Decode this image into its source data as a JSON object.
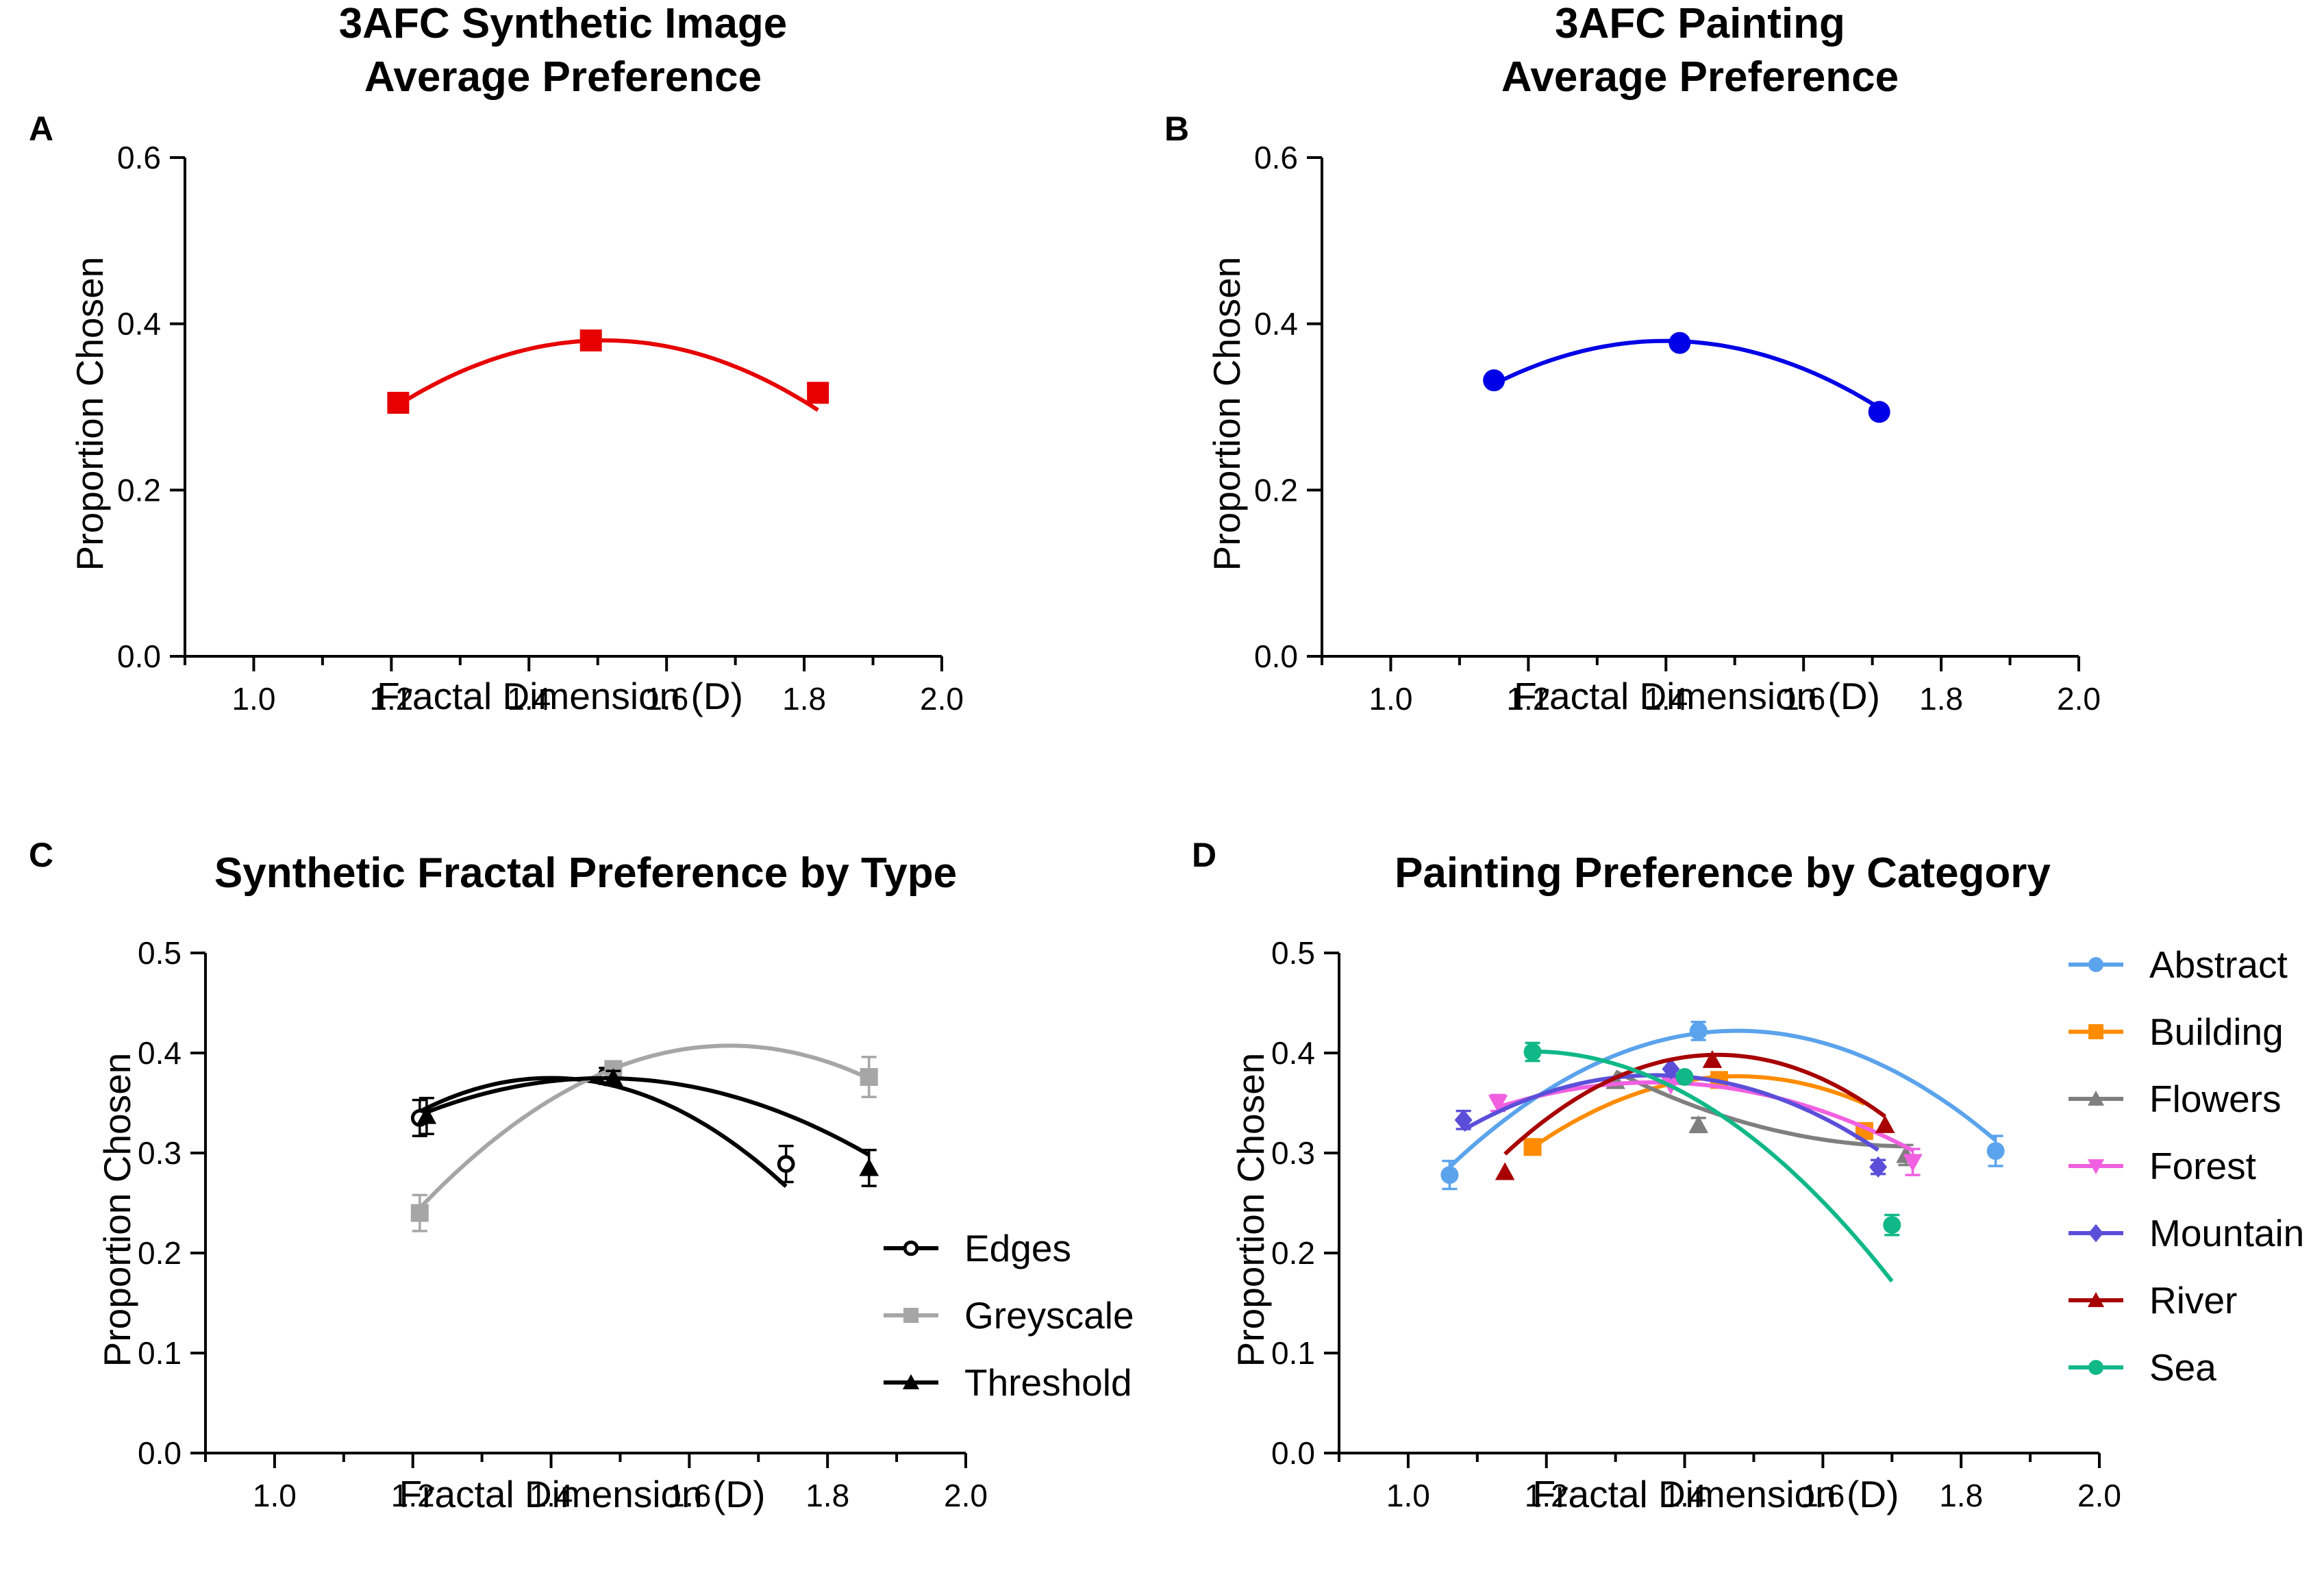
{
  "chart_data": [
    {
      "type": "line",
      "panel_label": "A",
      "title_lines": [
        "3AFC Synthetic Image",
        "Average Preference"
      ],
      "xlabel": "Fractal Dimension (D)",
      "ylabel": "Proportion Chosen",
      "xlim": [
        0.9,
        2.0
      ],
      "ylim": [
        0.0,
        0.6
      ],
      "xticks": [
        "1.0",
        "1.2",
        "1.4",
        "1.6",
        "1.8",
        "2.0"
      ],
      "yticks": [
        "0.0",
        "0.2",
        "0.4",
        "0.6"
      ],
      "legend_position": "none",
      "series": [
        {
          "name": "Synthetic",
          "color": "#e60000",
          "marker": "square",
          "x": [
            1.21,
            1.49,
            1.82
          ],
          "y": [
            0.305,
            0.38,
            0.317
          ],
          "fit": [
            -0.868,
            2.62,
            -1.597
          ],
          "fit_range": [
            1.21,
            1.82
          ]
        }
      ]
    },
    {
      "type": "line",
      "panel_label": "B",
      "title_lines": [
        "3AFC Painting",
        "Average Preference"
      ],
      "xlabel": "Fractal Dimension (D)",
      "ylabel": "Proportion Chosen",
      "xlim": [
        0.9,
        2.0
      ],
      "ylim": [
        0.0,
        0.6
      ],
      "xticks": [
        "1.0",
        "1.2",
        "1.4",
        "1.6",
        "1.8",
        "2.0"
      ],
      "yticks": [
        "0.0",
        "0.2",
        "0.4",
        "0.6"
      ],
      "legend_position": "none",
      "series": [
        {
          "name": "Painting",
          "color": "#0000e6",
          "marker": "circle",
          "x": [
            1.15,
            1.42,
            1.71
          ],
          "y": [
            0.332,
            0.377,
            0.294
          ],
          "fit": [
            -0.836,
            2.34,
            -1.258
          ],
          "fit_range": [
            1.15,
            1.71
          ]
        }
      ]
    },
    {
      "type": "line",
      "panel_label": "C",
      "title_lines": [
        "Synthetic Fractal Preference by Type"
      ],
      "xlabel": "Fractal Dimension (D)",
      "ylabel": "Proportion Chosen",
      "xlim": [
        0.9,
        2.0
      ],
      "ylim": [
        0.0,
        0.5
      ],
      "xticks": [
        "1.0",
        "1.2",
        "1.4",
        "1.6",
        "1.8",
        "2.0"
      ],
      "yticks": [
        "0.0",
        "0.1",
        "0.2",
        "0.3",
        "0.4",
        "0.5"
      ],
      "legend_position": "right",
      "series": [
        {
          "name": "Edges",
          "color": "#000000",
          "marker": "open-circle",
          "x": [
            1.21,
            1.48,
            1.74
          ],
          "y": [
            0.335,
            0.377,
            0.289
          ],
          "err": [
            0.018,
            0.008,
            0.018
          ],
          "fit": [
            -0.934,
            2.614,
            -1.454
          ],
          "fit_range": [
            1.21,
            1.74
          ]
        },
        {
          "name": "Greyscale",
          "color": "#a6a6a6",
          "marker": "square",
          "x": [
            1.21,
            1.49,
            1.86
          ],
          "y": [
            0.24,
            0.384,
            0.376
          ],
          "err": [
            0.018,
            0.007,
            0.02
          ],
          "fit": [
            -0.808,
            2.68,
            -1.815
          ],
          "fit_range": [
            1.21,
            1.86
          ]
        },
        {
          "name": "Threshold",
          "color": "#000000",
          "marker": "triangle",
          "x": [
            1.22,
            1.49,
            1.86
          ],
          "y": [
            0.337,
            0.375,
            0.285
          ],
          "err": [
            0.018,
            0.007,
            0.018
          ],
          "fit": [
            -0.52,
            1.535,
            -0.758
          ],
          "fit_range": [
            1.22,
            1.86
          ]
        }
      ]
    },
    {
      "type": "line",
      "panel_label": "D",
      "title_lines": [
        "Painting Preference by Category"
      ],
      "xlabel": "Fractal Dimension (D)",
      "ylabel": "Proportion Chosen",
      "xlim": [
        0.9,
        2.0
      ],
      "ylim": [
        0.0,
        0.5
      ],
      "xticks": [
        "1.0",
        "1.2",
        "1.4",
        "1.6",
        "1.8",
        "2.0"
      ],
      "yticks": [
        "0.0",
        "0.1",
        "0.2",
        "0.3",
        "0.4",
        "0.5"
      ],
      "legend_position": "right",
      "series": [
        {
          "name": "Abstract",
          "color": "#5ba3ec",
          "marker": "circle",
          "x": [
            1.06,
            1.42,
            1.85
          ],
          "y": [
            0.278,
            0.422,
            0.302
          ],
          "err": [
            0.014,
            0.009,
            0.015
          ],
          "fit": [
            -0.785,
            2.318,
            -1.289
          ],
          "fit_range": [
            1.06,
            1.85
          ]
        },
        {
          "name": "Building",
          "color": "#ff8c00",
          "marker": "square",
          "x": [
            1.18,
            1.45,
            1.66
          ],
          "y": [
            0.306,
            0.373,
            0.322
          ],
          "err": [
            0.0,
            0.0,
            0.0
          ],
          "fit": [
            -0.809,
            2.389,
            -1.387
          ],
          "fit_range": [
            1.18,
            1.66
          ]
        },
        {
          "name": "Flowers",
          "color": "#7f7f7f",
          "marker": "triangle",
          "x": [
            1.3,
            1.42,
            1.72
          ],
          "y": [
            0.372,
            0.328,
            0.298
          ],
          "err": [
            0.0,
            0.007,
            0.01
          ],
          "fit": [
            0.404,
            -1.398,
            1.516
          ],
          "fit_range": [
            1.3,
            1.72
          ]
        },
        {
          "name": "Forest",
          "color": "#f060e0",
          "marker": "triangle-down",
          "x": [
            1.13,
            1.38,
            1.73
          ],
          "y": [
            0.35,
            0.368,
            0.291
          ],
          "err": [
            0.008,
            0.0,
            0.013
          ],
          "fit": [
            -0.486,
            1.318,
            -0.523
          ],
          "fit_range": [
            1.13,
            1.73
          ]
        },
        {
          "name": "Mountain",
          "color": "#5b4fd9",
          "marker": "diamond",
          "x": [
            1.08,
            1.38,
            1.68
          ],
          "y": [
            0.333,
            0.384,
            0.286
          ],
          "err": [
            0.009,
            0.0,
            0.007
          ],
          "fit": [
            -0.714,
            1.937,
            -0.936
          ],
          "fit_range": [
            1.08,
            1.68
          ]
        },
        {
          "name": "River",
          "color": "#a80000",
          "marker": "triangle",
          "x": [
            1.14,
            1.44,
            1.69
          ],
          "y": [
            0.281,
            0.393,
            0.328
          ],
          "err": [
            0.0,
            0.0,
            0.0
          ],
          "fit": [
            -1.049,
            3.037,
            -1.8
          ],
          "fit_range": [
            1.14,
            1.69
          ]
        },
        {
          "name": "Sea",
          "color": "#10b888",
          "marker": "circle",
          "x": [
            1.18,
            1.4,
            1.7
          ],
          "y": [
            0.401,
            0.376,
            0.228
          ],
          "err": [
            0.009,
            0.0,
            0.01
          ],
          "fit": [
            -0.842,
            1.983,
            -0.766
          ],
          "fit_range": [
            1.18,
            1.7
          ]
        }
      ]
    }
  ]
}
